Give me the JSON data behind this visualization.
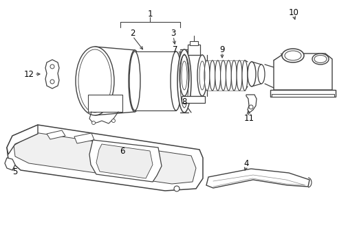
{
  "bg_color": "#ffffff",
  "line_color": "#404040",
  "line_width": 0.8,
  "label_color": "#000000",
  "label_fontsize": 8.5,
  "fig_width": 4.9,
  "fig_height": 3.6,
  "dpi": 100
}
